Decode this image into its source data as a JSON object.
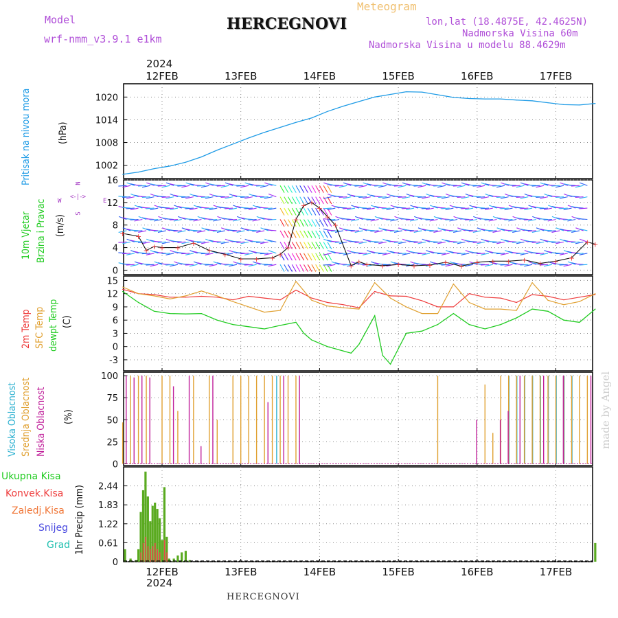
{
  "header": {
    "model_label": "Model",
    "model_name": "wrf-nmm_v3.9.1  e1km",
    "meteogram": "Meteogram",
    "title": "HERCEGNOVI",
    "lonlat": "lon,lat (18.4875E, 42.4625N)",
    "elevation": "Nadmorska Visina 60m",
    "model_elevation": "Nadmorska Visina u modelu 88.4629m"
  },
  "top_year": "2024",
  "bottom_year": "2024",
  "footer_station": "HERCEGNOVI",
  "credit": "made by Angel",
  "colors": {
    "pressure": "#1e9be6",
    "temp2m": "#ee3a3a",
    "sfc": "#e0a030",
    "dew": "#22cc22",
    "cloud_high": "#2ab0d0",
    "cloud_mid": "#e0a030",
    "cloud_low": "#c0209a",
    "rain_total": "#5aaa20",
    "rain_conv": "#e84a4a"
  },
  "days": [
    "12FEB",
    "13FEB",
    "14FEB",
    "15FEB",
    "16FEB",
    "17FEB"
  ],
  "panels": {
    "pressure": {
      "labels": [
        "Pritisak  na  nivou  mora",
        "(hPa)"
      ]
    },
    "wind": {
      "labels": [
        "10m  Vjetar",
        "Brzina i Pravac",
        "(m/s)"
      ],
      "compass": [
        "N",
        "E",
        "S",
        "W"
      ]
    },
    "temp": {
      "labels": [
        "2m  Temp",
        "SFC  Temp",
        "dewpt  Temp",
        "(C)"
      ]
    },
    "cloud": {
      "labels": [
        "Visoka  Oblacnost",
        "Srednja  Oblacnost",
        "Niska  Oblacnost",
        "(%)"
      ]
    },
    "precip": {
      "unit_label": "1hr  Precip  (mm)",
      "legend": [
        "Ukupna  Kisa",
        "Konvek.Kisa",
        "Zaledj.Kisa",
        "Snijeg",
        "Grad"
      ]
    }
  },
  "chart_data": [
    {
      "type": "line",
      "title": "",
      "ylabel": "(hPa)",
      "x_categories": [
        "12FEB",
        "13FEB",
        "14FEB",
        "15FEB",
        "16FEB",
        "17FEB"
      ],
      "yticks": [
        1002,
        1008,
        1014,
        1020
      ],
      "ylim": [
        998.5,
        1023.5
      ],
      "series": [
        {
          "name": "Pritisak na nivou mora",
          "x": [
            -0.5,
            -0.3,
            -0.1,
            0.1,
            0.3,
            0.5,
            0.7,
            0.9,
            1.1,
            1.3,
            1.5,
            1.7,
            1.9,
            2.1,
            2.3,
            2.5,
            2.7,
            2.9,
            3.1,
            3.3,
            3.5,
            3.7,
            3.9,
            4.1,
            4.3,
            4.5,
            4.7,
            4.9,
            5.1,
            5.3,
            5.5
          ],
          "y": [
            999.6,
            1000.2,
            1001.1,
            1001.8,
            1002.8,
            1004.2,
            1006.0,
            1007.6,
            1009.2,
            1010.7,
            1012.0,
            1013.3,
            1014.5,
            1016.2,
            1017.6,
            1018.8,
            1020.0,
            1020.7,
            1021.4,
            1021.3,
            1020.6,
            1019.9,
            1019.6,
            1019.5,
            1019.5,
            1019.2,
            1019.0,
            1018.5,
            1018.0,
            1017.9,
            1018.3
          ]
        }
      ]
    },
    {
      "type": "line",
      "title": "",
      "ylabel": "(m/s)",
      "x_categories": [
        "12FEB",
        "13FEB",
        "14FEB",
        "15FEB",
        "16FEB",
        "17FEB"
      ],
      "yticks": [
        0,
        4,
        8,
        12,
        16
      ],
      "ylim": [
        -0.8,
        16
      ],
      "series": [
        {
          "name": "10m Vjetar",
          "x": [
            -0.5,
            -0.3,
            -0.2,
            -0.1,
            0.0,
            0.2,
            0.4,
            0.6,
            0.8,
            1.0,
            1.2,
            1.4,
            1.5,
            1.6,
            1.7,
            1.8,
            1.9,
            2.0,
            2.1,
            2.2,
            2.4,
            2.5,
            2.6,
            2.8,
            3.0,
            3.2,
            3.4,
            3.6,
            3.8,
            4.0,
            4.2,
            4.4,
            4.6,
            4.8,
            5.0,
            5.2,
            5.4,
            5.5
          ],
          "y": [
            6.5,
            6.0,
            3.5,
            4.2,
            4.0,
            4.0,
            4.8,
            3.5,
            2.8,
            2.0,
            2.0,
            2.2,
            2.8,
            4.0,
            9.0,
            11.5,
            12.0,
            11.0,
            9.5,
            8.0,
            0.8,
            1.5,
            1.0,
            0.8,
            1.0,
            0.8,
            0.9,
            1.4,
            0.7,
            1.4,
            1.6,
            1.6,
            1.8,
            1.2,
            1.6,
            2.2,
            5.0,
            4.6
          ]
        }
      ]
    },
    {
      "type": "line",
      "title": "",
      "ylabel": "(C)",
      "x_categories": [
        "12FEB",
        "13FEB",
        "14FEB",
        "15FEB",
        "16FEB",
        "17FEB"
      ],
      "yticks": [
        -3,
        0,
        3,
        6,
        9,
        12,
        15
      ],
      "ylim": [
        -5.5,
        16
      ],
      "series": [
        {
          "name": "2m Temp",
          "x": [
            -0.5,
            -0.3,
            -0.1,
            0.1,
            0.3,
            0.5,
            0.7,
            0.9,
            1.1,
            1.3,
            1.5,
            1.7,
            1.9,
            2.1,
            2.3,
            2.5,
            2.7,
            2.9,
            3.1,
            3.3,
            3.5,
            3.7,
            3.9,
            4.1,
            4.3,
            4.5,
            4.7,
            4.9,
            5.1,
            5.3,
            5.5
          ],
          "y": [
            13.0,
            12.0,
            11.8,
            11.2,
            11.2,
            11.4,
            11.2,
            10.6,
            11.4,
            11.0,
            10.6,
            12.8,
            11.0,
            10.0,
            9.5,
            8.8,
            12.5,
            11.5,
            11.4,
            10.4,
            9.0,
            9.0,
            12.0,
            11.2,
            11.0,
            10.0,
            11.8,
            11.4,
            10.6,
            11.2,
            11.8
          ]
        },
        {
          "name": "SFC Temp",
          "x": [
            -0.5,
            -0.3,
            -0.1,
            0.1,
            0.3,
            0.5,
            0.7,
            0.9,
            1.1,
            1.3,
            1.5,
            1.7,
            1.9,
            2.1,
            2.3,
            2.5,
            2.7,
            2.9,
            3.1,
            3.3,
            3.5,
            3.7,
            3.9,
            4.1,
            4.3,
            4.5,
            4.7,
            4.9,
            5.1,
            5.3,
            5.5
          ],
          "y": [
            13.5,
            12.0,
            11.5,
            10.8,
            11.5,
            12.6,
            11.5,
            10.2,
            9.0,
            7.8,
            8.2,
            14.8,
            10.5,
            9.2,
            8.8,
            8.5,
            14.5,
            11.0,
            9.0,
            7.5,
            7.5,
            14.2,
            10.0,
            8.5,
            8.5,
            8.2,
            14.5,
            10.5,
            9.5,
            10.2,
            12.0
          ]
        },
        {
          "name": "dewpt Temp",
          "x": [
            -0.5,
            -0.3,
            -0.1,
            0.1,
            0.3,
            0.5,
            0.7,
            0.9,
            1.1,
            1.3,
            1.5,
            1.7,
            1.8,
            1.9,
            2.1,
            2.3,
            2.4,
            2.5,
            2.7,
            2.8,
            2.9,
            3.1,
            3.3,
            3.5,
            3.7,
            3.9,
            4.1,
            4.3,
            4.5,
            4.7,
            4.9,
            5.1,
            5.3,
            5.5
          ],
          "y": [
            12.5,
            10.0,
            8.0,
            7.5,
            7.4,
            7.5,
            6.0,
            5.0,
            4.5,
            4.0,
            4.8,
            5.5,
            3.0,
            1.5,
            0.0,
            -1.0,
            -1.5,
            0.5,
            7.0,
            -2.0,
            -4.0,
            3.0,
            3.5,
            5.0,
            7.5,
            5.0,
            4.0,
            5.0,
            6.5,
            8.5,
            8.0,
            6.0,
            5.5,
            8.5
          ]
        }
      ]
    },
    {
      "type": "bar",
      "title": "",
      "ylabel": "(%)",
      "x_categories": [
        "12FEB",
        "13FEB",
        "14FEB",
        "15FEB",
        "16FEB",
        "17FEB"
      ],
      "yticks": [
        0,
        25,
        50,
        75,
        100
      ],
      "ylim": [
        -2,
        104
      ],
      "series": [
        {
          "name": "Visoka Oblacnost",
          "x": [
            -0.1,
            0.3,
            1.3,
            1.45,
            1.6,
            4.4,
            4.5,
            4.6,
            4.7,
            4.8,
            4.9,
            5.0,
            5.1,
            5.2,
            5.3,
            5.4
          ],
          "y": [
            0,
            0,
            0,
            100,
            0,
            100,
            100,
            100,
            100,
            100,
            100,
            100,
            100,
            100,
            0,
            0
          ]
        },
        {
          "name": "Srednja Oblacnost",
          "x": [
            -0.5,
            -0.4,
            -0.3,
            -0.2,
            0.0,
            0.1,
            0.2,
            0.4,
            0.6,
            0.7,
            0.9,
            1.0,
            1.1,
            1.2,
            1.3,
            1.4,
            1.5,
            1.6,
            1.7,
            3.5,
            4.1,
            4.2,
            4.3,
            4.4,
            4.5,
            4.6,
            4.7,
            4.8,
            4.9,
            5.0,
            5.1,
            5.2,
            5.3,
            5.4
          ],
          "y": [
            47,
            100,
            100,
            100,
            100,
            100,
            60,
            100,
            100,
            50,
            100,
            100,
            100,
            100,
            100,
            100,
            100,
            100,
            100,
            100,
            90,
            35,
            100,
            100,
            100,
            100,
            100,
            100,
            100,
            100,
            100,
            100,
            100,
            100
          ]
        },
        {
          "name": "Niska Oblacnost",
          "x": [
            -0.45,
            -0.35,
            -0.25,
            -0.15,
            0.15,
            0.35,
            0.5,
            0.65,
            1.1,
            1.35,
            1.55,
            1.75,
            4.0,
            4.3,
            4.4,
            4.55,
            4.85,
            5.1,
            5.45
          ],
          "y": [
            100,
            98,
            100,
            98,
            88,
            100,
            20,
            100,
            0,
            70,
            100,
            100,
            50,
            50,
            60,
            100,
            100,
            100,
            100
          ]
        }
      ]
    },
    {
      "type": "bar",
      "title": "",
      "ylabel": "1hr Precip (mm)",
      "x_categories": [
        "12FEB",
        "13FEB",
        "14FEB",
        "15FEB",
        "16FEB",
        "17FEB"
      ],
      "yticks": [
        0,
        0.61,
        1.22,
        1.83,
        2.44
      ],
      "ylim": [
        0,
        3.05
      ],
      "series": [
        {
          "name": "Ukupna Kisa",
          "x": [
            -0.47,
            -0.4,
            -0.33,
            -0.3,
            -0.27,
            -0.24,
            -0.21,
            -0.18,
            -0.15,
            -0.12,
            -0.09,
            -0.06,
            -0.03,
            0.0,
            0.03,
            0.06,
            0.09,
            0.15,
            0.2,
            0.25,
            0.3,
            0.35,
            5.5
          ],
          "y": [
            0.4,
            0.1,
            0.05,
            0.4,
            1.6,
            2.3,
            2.9,
            2.1,
            1.3,
            1.8,
            1.9,
            1.7,
            1.4,
            0.7,
            2.4,
            0.8,
            0.1,
            0.1,
            0.2,
            0.3,
            0.35,
            0.05,
            0.6
          ]
        },
        {
          "name": "Konvek.Kisa",
          "x": [
            -0.27,
            -0.24,
            -0.21,
            -0.18,
            -0.15,
            -0.12,
            -0.09,
            -0.06,
            -0.03,
            0.03,
            0.06
          ],
          "y": [
            0.3,
            0.6,
            0.8,
            0.5,
            0.4,
            0.5,
            0.6,
            0.4,
            0.3,
            0.7,
            0.3
          ]
        }
      ]
    }
  ]
}
